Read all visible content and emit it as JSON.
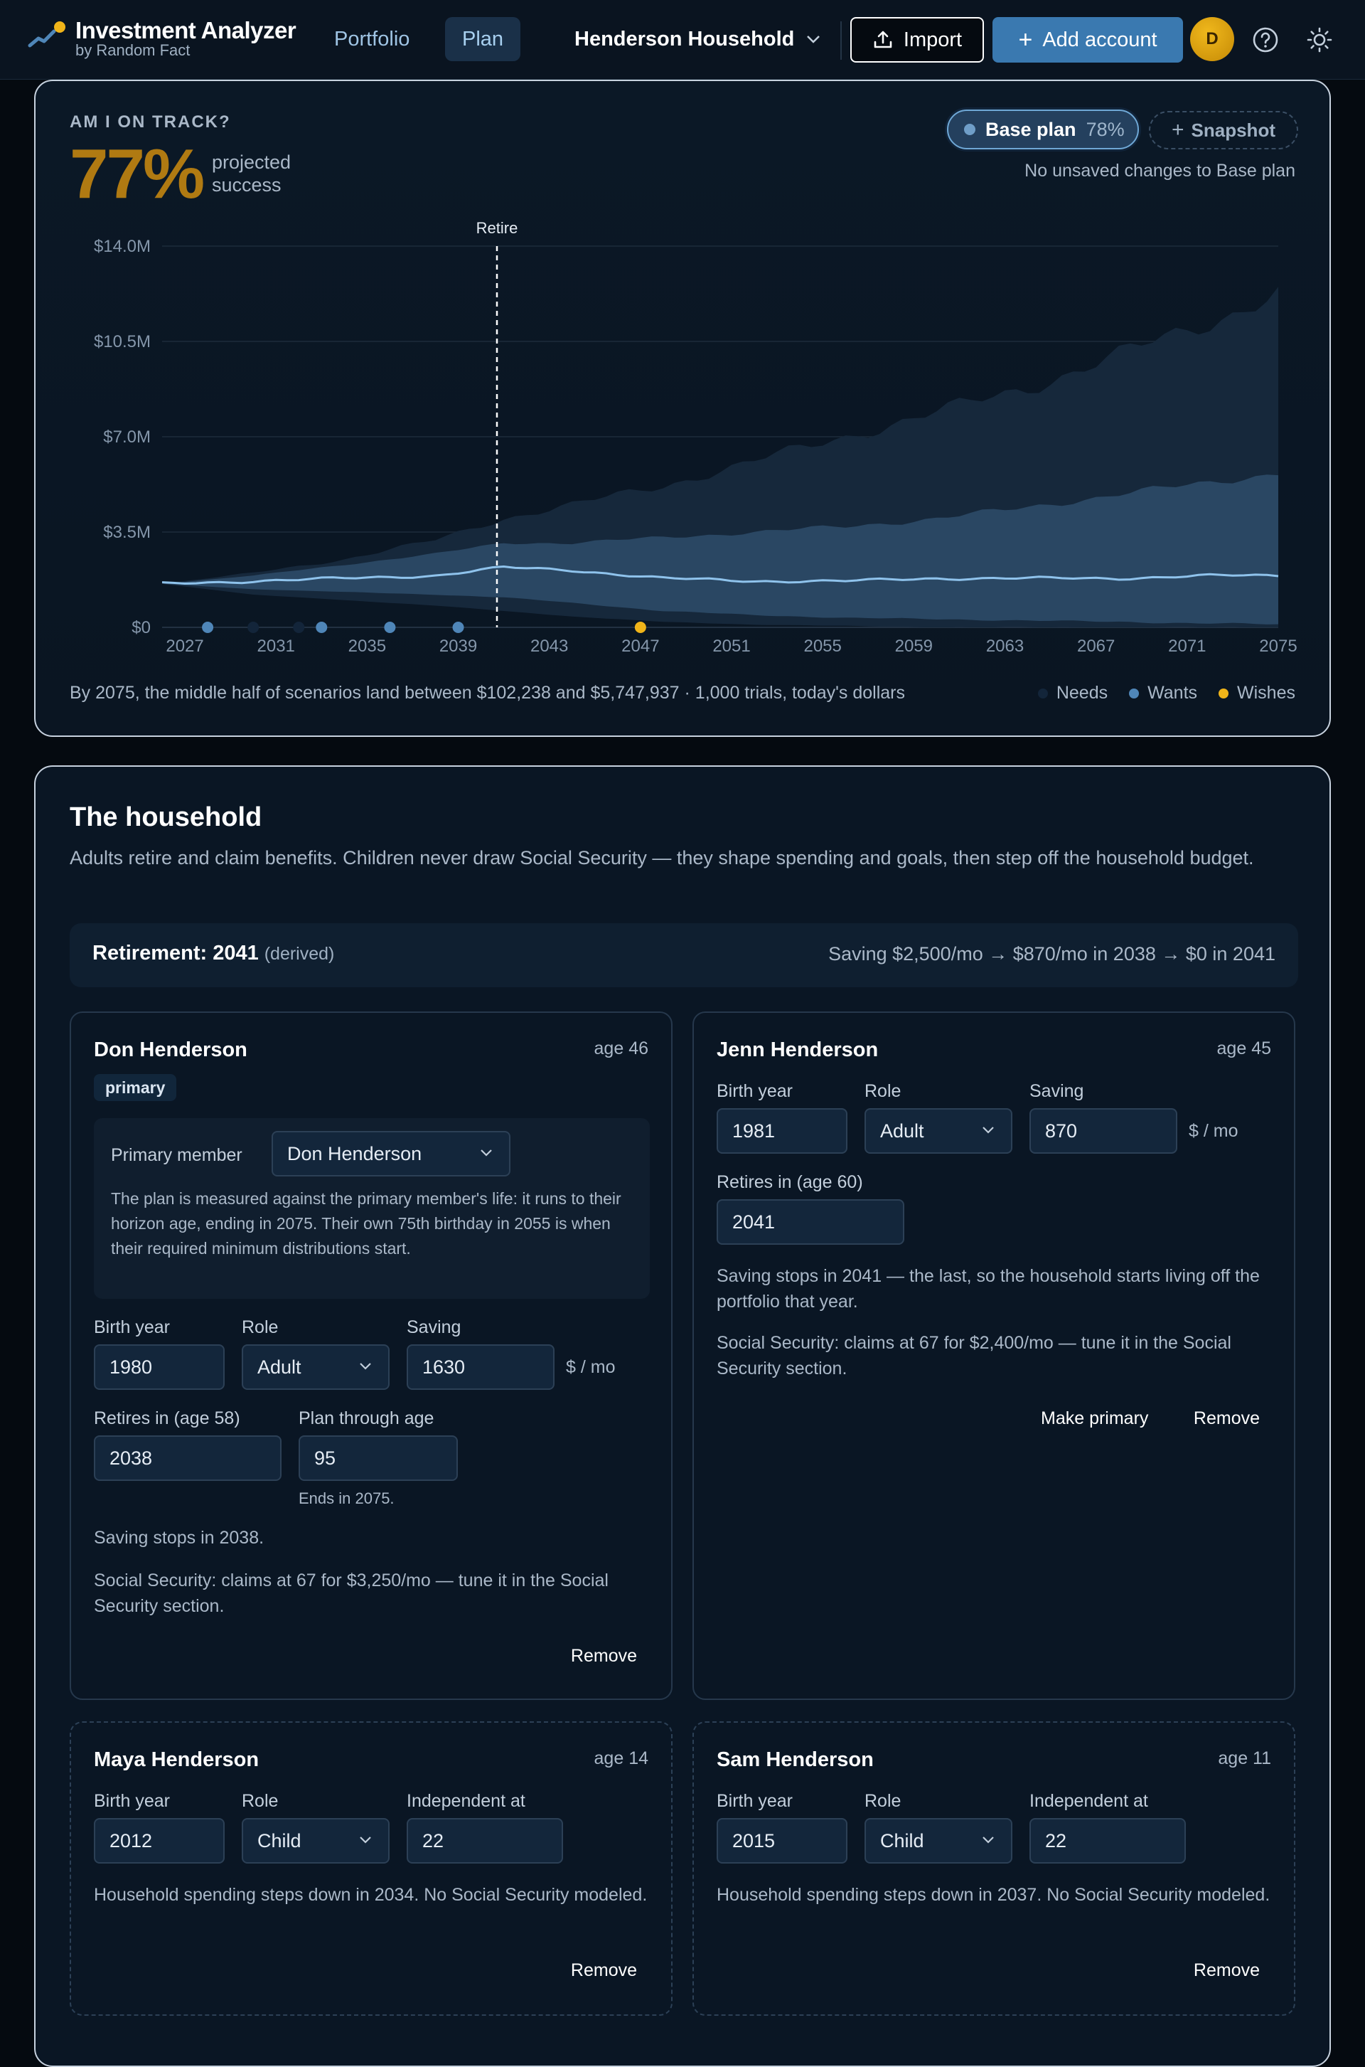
{
  "brand": {
    "name": "Investment Analyzer",
    "sub": "by Random Fact"
  },
  "nav": {
    "tabs": [
      {
        "label": "Portfolio"
      },
      {
        "label": "Plan"
      }
    ],
    "household": "Henderson Household"
  },
  "actions": {
    "import": "Import",
    "add_account": "Add account",
    "avatar_initial": "D"
  },
  "track": {
    "label": "AM I ON TRACK?",
    "pct": "77%",
    "caption_line1": "projected",
    "caption_line2": "success",
    "base_plan": "Base plan",
    "base_pct": "78%",
    "snapshot": "Snapshot",
    "unsaved": "No unsaved changes to Base plan",
    "summary": "By 2075, the middle half of scenarios land between $102,238 and $5,747,937 · 1,000 trials, today's dollars",
    "legend": [
      {
        "label": "Needs",
        "color": "#13253a"
      },
      {
        "label": "Wants",
        "color": "#4f86b8"
      },
      {
        "label": "Wishes",
        "color": "#f0b419"
      }
    ]
  },
  "chart_data": {
    "type": "area",
    "retire_label": "Retire",
    "retire_year": 2041,
    "y_ticks": [
      "$0",
      "$3.5M",
      "$7.0M",
      "$10.5M",
      "$14.0M"
    ],
    "ylim": [
      0,
      14.0
    ],
    "x_ticks": [
      "2027",
      "2031",
      "2035",
      "2039",
      "2043",
      "2047",
      "2051",
      "2055",
      "2059",
      "2063",
      "2067",
      "2071",
      "2075"
    ],
    "years": [
      2026,
      2030,
      2034,
      2038,
      2041,
      2044,
      2048,
      2052,
      2056,
      2060,
      2064,
      2068,
      2072,
      2075
    ],
    "p90": [
      1.6,
      2.0,
      2.5,
      3.2,
      4.0,
      4.5,
      5.2,
      6.1,
      7.0,
      7.9,
      8.8,
      10.0,
      11.2,
      12.3
    ],
    "p75": [
      1.6,
      1.9,
      2.3,
      2.7,
      3.1,
      3.1,
      3.3,
      3.5,
      3.7,
      4.0,
      4.4,
      4.9,
      5.3,
      5.7
    ],
    "median": [
      1.6,
      1.7,
      1.8,
      1.9,
      2.2,
      2.1,
      1.8,
      1.7,
      1.7,
      1.8,
      1.8,
      1.8,
      1.9,
      1.9
    ],
    "p25": [
      1.6,
      1.4,
      1.3,
      1.2,
      1.1,
      0.9,
      0.6,
      0.45,
      0.35,
      0.3,
      0.25,
      0.2,
      0.15,
      0.1
    ],
    "p10": [
      1.6,
      1.2,
      1.0,
      0.8,
      0.6,
      0.4,
      0.2,
      0.1,
      0.05,
      0.0,
      0.0,
      0.0,
      0.0,
      0.0
    ],
    "goal_markers": [
      {
        "year": 2028,
        "kind": "wants"
      },
      {
        "year": 2030,
        "kind": "needs"
      },
      {
        "year": 2032,
        "kind": "needs"
      },
      {
        "year": 2033,
        "kind": "wants"
      },
      {
        "year": 2036,
        "kind": "wants"
      },
      {
        "year": 2039,
        "kind": "wants"
      },
      {
        "year": 2047,
        "kind": "wishes"
      }
    ]
  },
  "household": {
    "title": "The household",
    "desc": "Adults retire and claim benefits. Children never draw Social Security — they shape spending and goals, then step off the household budget.",
    "retirement_label": "Retirement: 2041",
    "retirement_derived": "(derived)",
    "saving_summary": "Saving $2,500/mo → $870/mo in 2038 → $0 in 2041",
    "labels": {
      "birth_year": "Birth year",
      "role": "Role",
      "saving": "Saving",
      "per_mo": "$ / mo",
      "plan_through": "Plan through age",
      "independent_at": "Independent at",
      "primary_member": "Primary member",
      "remove": "Remove",
      "make_primary": "Make primary"
    },
    "members": [
      {
        "name": "Don Henderson",
        "age": "age 46",
        "badge": "primary",
        "primary_select": "Don Henderson",
        "primary_note": "The plan is measured against the primary member's life: it runs to their horizon age, ending in 2075. Their own 75th birthday in 2055 is when their required minimum distributions start.",
        "birth_year": "1980",
        "role": "Adult",
        "saving": "1630",
        "retires_label": "Retires in (age 58)",
        "retires": "2038",
        "plan_through": "95",
        "ends": "Ends in 2075.",
        "saving_note": "Saving stops in 2038.",
        "ss_note": "Social Security: claims at 67 for $3,250/mo — tune it in the Social Security section."
      },
      {
        "name": "Jenn Henderson",
        "age": "age 45",
        "birth_year": "1981",
        "role": "Adult",
        "saving": "870",
        "retires_label": "Retires in (age 60)",
        "retires": "2041",
        "saving_note": "Saving stops in 2041 — the last, so the household starts living off the portfolio that year.",
        "ss_note": "Social Security: claims at 67 for $2,400/mo — tune it in the Social Security section."
      },
      {
        "name": "Maya Henderson",
        "age": "age 14",
        "birth_year": "2012",
        "role": "Child",
        "independent_at": "22",
        "note": "Household spending steps down in 2034. No Social Security modeled."
      },
      {
        "name": "Sam Henderson",
        "age": "age 11",
        "birth_year": "2015",
        "role": "Child",
        "independent_at": "22",
        "note": "Household spending steps down in 2037. No Social Security modeled."
      }
    ]
  }
}
